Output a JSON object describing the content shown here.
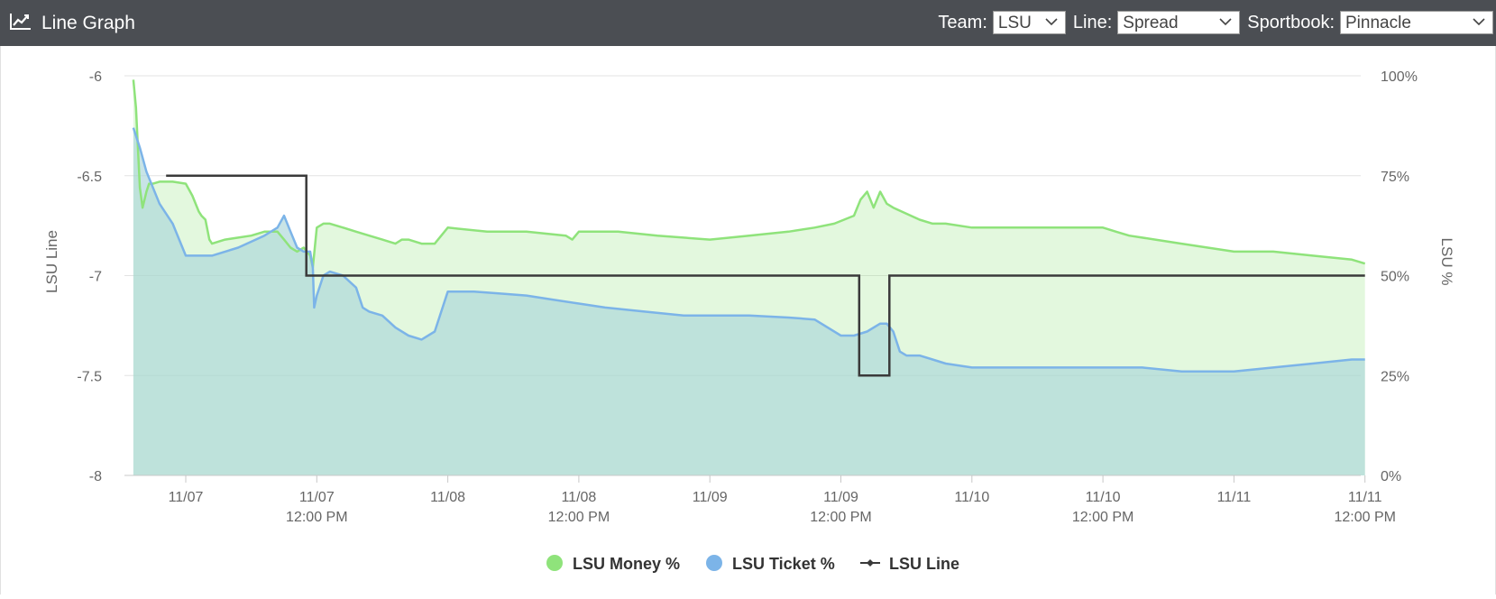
{
  "header": {
    "title": "Line Graph",
    "team_label": "Team:",
    "team_value": "LSU",
    "line_label": "Line:",
    "line_value": "Spread",
    "sportsbook_label": "Sportbook:",
    "sportsbook_value": "Pinnacle"
  },
  "colors": {
    "header_bg": "#4b4e53",
    "money": "#8fe37b",
    "ticket": "#7cb4e8",
    "line": "#3a3a3a"
  },
  "chart_data": {
    "type": "line",
    "xlabel": "",
    "ylabel": "LSU Line",
    "y2label": "LSU %",
    "ylim": [
      -8,
      -6
    ],
    "y2lim": [
      0,
      100
    ],
    "yticks": [
      "-6",
      "-6.5",
      "-7",
      "-7.5",
      "-8"
    ],
    "y2ticks": [
      "100%",
      "75%",
      "50%",
      "25%",
      "0%"
    ],
    "xticks": [
      {
        "x": 0,
        "label": "11/07"
      },
      {
        "x": 1,
        "label": "11/07",
        "sub": "12:00 PM"
      },
      {
        "x": 2,
        "label": "11/08"
      },
      {
        "x": 3,
        "label": "11/08",
        "sub": "12:00 PM"
      },
      {
        "x": 4,
        "label": "11/09"
      },
      {
        "x": 5,
        "label": "11/09",
        "sub": "12:00 PM"
      },
      {
        "x": 6,
        "label": "11/10"
      },
      {
        "x": 7,
        "label": "11/10",
        "sub": "12:00 PM"
      },
      {
        "x": 8,
        "label": "11/11"
      },
      {
        "x": 9,
        "label": "11/11",
        "sub": "12:00 PM"
      }
    ],
    "grid": true,
    "legend_position": "bottom",
    "series": [
      {
        "name": "LSU Money %",
        "axis": "right",
        "kind": "area",
        "x": [
          -0.4,
          -0.38,
          -0.35,
          -0.33,
          -0.3,
          -0.28,
          -0.25,
          -0.2,
          -0.1,
          0.0,
          0.05,
          0.1,
          0.12,
          0.15,
          0.18,
          0.2,
          0.3,
          0.5,
          0.6,
          0.7,
          0.75,
          0.8,
          0.85,
          0.9,
          0.95,
          0.97,
          1.0,
          1.05,
          1.1,
          1.2,
          1.3,
          1.4,
          1.5,
          1.6,
          1.65,
          1.7,
          1.8,
          1.9,
          2.0,
          2.3,
          2.6,
          2.9,
          2.95,
          3.0,
          3.3,
          3.6,
          4.0,
          4.3,
          4.6,
          4.8,
          4.95,
          5.1,
          5.15,
          5.2,
          5.25,
          5.3,
          5.35,
          5.4,
          5.6,
          5.7,
          5.8,
          6.0,
          6.3,
          6.6,
          7.0,
          7.1,
          7.2,
          7.4,
          7.6,
          7.8,
          8.0,
          8.3,
          8.6,
          8.9,
          9.0
        ],
        "y": [
          99,
          92,
          72,
          67,
          71,
          73,
          73,
          73.5,
          73.5,
          73,
          70,
          66,
          65,
          64,
          59,
          58,
          59,
          60,
          61,
          61,
          59,
          57,
          56,
          57,
          55,
          52,
          62,
          63,
          63,
          62,
          61,
          60,
          59,
          58,
          59,
          59,
          58,
          58,
          62,
          61,
          61,
          60,
          59,
          61,
          61,
          60,
          59,
          60,
          61,
          62,
          63,
          65,
          69,
          71,
          67,
          71,
          68,
          67,
          64,
          63,
          63,
          62,
          62,
          62,
          62,
          61,
          60,
          59,
          58,
          57,
          56,
          56,
          55,
          54,
          53
        ]
      },
      {
        "name": "LSU Ticket %",
        "axis": "right",
        "kind": "area",
        "x": [
          -0.4,
          -0.35,
          -0.3,
          -0.2,
          -0.1,
          0.0,
          0.2,
          0.4,
          0.6,
          0.7,
          0.75,
          0.8,
          0.85,
          0.9,
          0.95,
          0.97,
          0.98,
          1.0,
          1.05,
          1.1,
          1.2,
          1.3,
          1.35,
          1.4,
          1.5,
          1.6,
          1.7,
          1.8,
          1.9,
          2.0,
          2.2,
          2.4,
          2.6,
          2.8,
          3.0,
          3.2,
          3.5,
          3.8,
          4.0,
          4.3,
          4.6,
          4.8,
          5.0,
          5.1,
          5.2,
          5.3,
          5.35,
          5.4,
          5.45,
          5.5,
          5.6,
          5.7,
          5.8,
          6.0,
          6.5,
          7.0,
          7.3,
          7.6,
          8.0,
          8.3,
          8.6,
          8.9,
          9.0
        ],
        "y": [
          87,
          82,
          76,
          68,
          63,
          55,
          55,
          57,
          60,
          62,
          65,
          61,
          57,
          56,
          56,
          52,
          42,
          45,
          50,
          51,
          50,
          47,
          42,
          41,
          40,
          37,
          35,
          34,
          36,
          46,
          46,
          45.5,
          45,
          44,
          43,
          42,
          41,
          40,
          40,
          40,
          39.5,
          39,
          35,
          35,
          36,
          38,
          38,
          36,
          31,
          30,
          30,
          29,
          28,
          27,
          27,
          27,
          27,
          26,
          26,
          27,
          28,
          29,
          29
        ]
      },
      {
        "name": "LSU Line",
        "axis": "left",
        "kind": "line",
        "x": [
          -0.15,
          0.92,
          0.92,
          5.14,
          5.14,
          5.37,
          5.37,
          9.0
        ],
        "y": [
          -6.5,
          -6.5,
          -7.0,
          -7.0,
          -7.5,
          -7.5,
          -7.0,
          -7.0
        ]
      }
    ]
  }
}
